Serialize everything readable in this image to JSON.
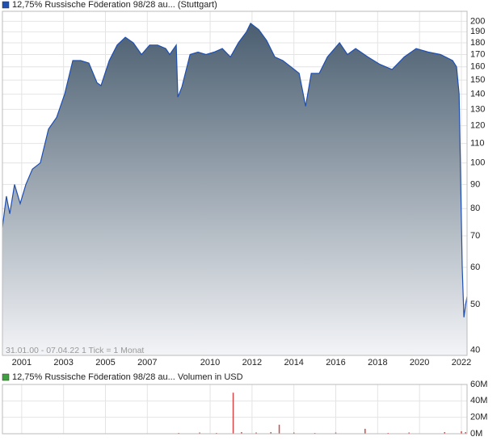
{
  "chart_data": [
    {
      "type": "area",
      "title": "12,75% Russische Föderation 98/28 au... (Stuttgart)",
      "annotation": "31.01.00 - 07.04.22   1 Tick = 1 Monat",
      "color": "#1f4fb0",
      "log_scale": true,
      "grid": true,
      "x": [
        2000.08,
        2000.27,
        2000.43,
        2000.66,
        2000.93,
        2001.2,
        2001.51,
        2001.89,
        2002.28,
        2002.67,
        2003.05,
        2003.44,
        2003.82,
        2004.21,
        2004.6,
        2004.79,
        2005.18,
        2005.56,
        2005.95,
        2006.33,
        2006.72,
        2007.11,
        2007.49,
        2007.88,
        2008.07,
        2008.38,
        2008.46,
        2008.65,
        2009.04,
        2009.42,
        2009.81,
        2010.19,
        2010.58,
        2010.97,
        2011.35,
        2011.74,
        2011.93,
        2012.32,
        2012.7,
        2013.09,
        2013.47,
        2013.86,
        2014.25,
        2014.56,
        2014.83,
        2015.21,
        2015.6,
        2016.18,
        2016.56,
        2016.95,
        2017.53,
        2018.11,
        2018.69,
        2019.27,
        2019.84,
        2020.42,
        2021.0,
        2021.58,
        2021.77,
        2021.89,
        2021.97,
        2022.04,
        2022.12,
        2022.2,
        2022.27
      ],
      "values": [
        73,
        85,
        78,
        90,
        82,
        90,
        97,
        100,
        118,
        125,
        140,
        165,
        165,
        163,
        148,
        146,
        165,
        178,
        185,
        180,
        170,
        178,
        178,
        175,
        170,
        178,
        138,
        145,
        170,
        172,
        170,
        172,
        175,
        168,
        180,
        190,
        198,
        192,
        182,
        168,
        165,
        160,
        155,
        132,
        155,
        155,
        168,
        180,
        170,
        175,
        168,
        162,
        158,
        168,
        175,
        172,
        170,
        165,
        160,
        140,
        90,
        60,
        47,
        50,
        52
      ],
      "xlim": [
        2000.08,
        2022.27
      ],
      "xticks": [
        2001,
        2003,
        2005,
        2007,
        2010,
        2012,
        2014,
        2016,
        2018,
        2020,
        2022
      ],
      "ylim": [
        39,
        210
      ],
      "yticks": [
        40,
        50,
        60,
        70,
        80,
        90,
        100,
        110,
        120,
        130,
        140,
        150,
        160,
        170,
        180,
        190,
        200
      ]
    },
    {
      "type": "bar",
      "title": "12,75% Russische Föderation 98/28 au... Volumen in USD",
      "color": "#d04848",
      "legend_color": "#40a040",
      "grid": true,
      "x": [
        2008.5,
        2009.5,
        2010.3,
        2011.1,
        2011.5,
        2012.2,
        2012.9,
        2013.3,
        2014.0,
        2015.0,
        2016.0,
        2017.4,
        2018.5,
        2019.5,
        2021.2,
        2022.0,
        2022.2
      ],
      "values": [
        1000000,
        1500000,
        1000000,
        50000000,
        2000000,
        1500000,
        2000000,
        11000000,
        1500000,
        1000000,
        1500000,
        6000000,
        1000000,
        1500000,
        2000000,
        3000000,
        2000000
      ],
      "xlim": [
        2000.08,
        2022.27
      ],
      "xticks": [
        2001,
        2003,
        2005,
        2007,
        2010,
        2012,
        2014,
        2016,
        2018,
        2020,
        2022
      ],
      "ylim": [
        0,
        60000000
      ],
      "yticks": [
        {
          "value": 0,
          "label": "0M"
        },
        {
          "value": 20000000,
          "label": "20M"
        },
        {
          "value": 40000000,
          "label": "40M"
        },
        {
          "value": 60000000,
          "label": "60M"
        }
      ]
    }
  ]
}
